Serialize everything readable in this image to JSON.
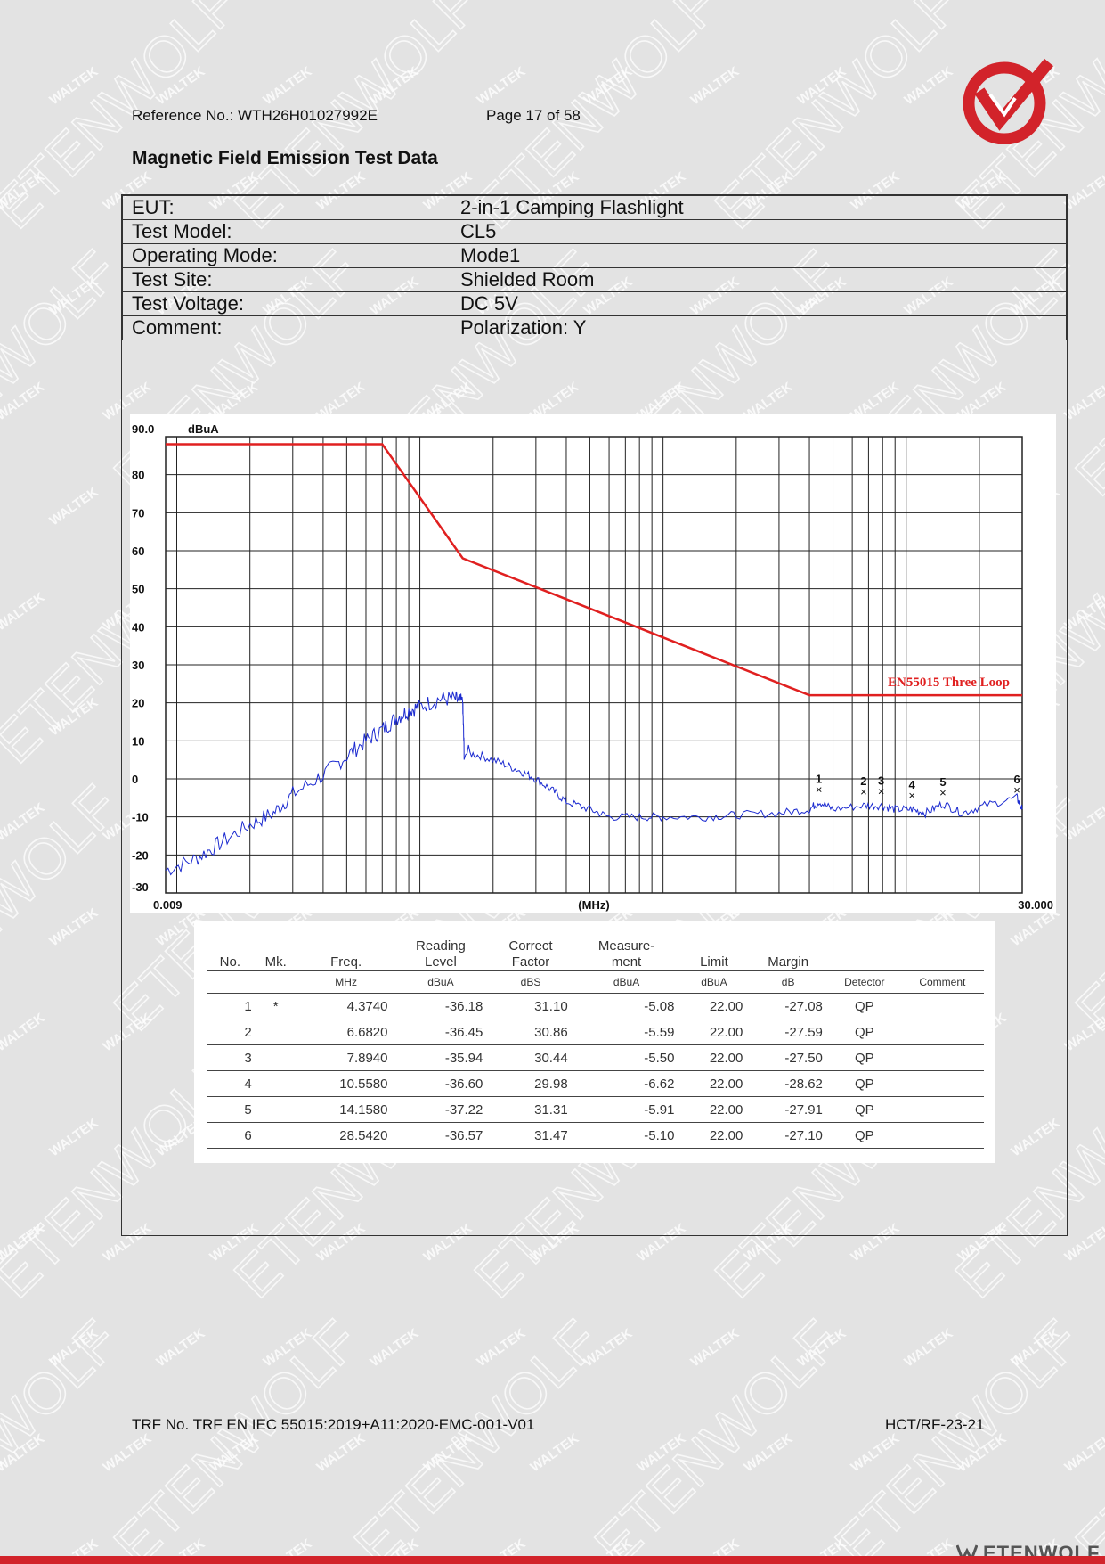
{
  "header": {
    "reference": "Reference No.: WTH26H01027992E",
    "page": "Page 17 of 58"
  },
  "logo_icon": "waltek-check-logo",
  "watermarks": [
    "WALTEK",
    "ETENWOLF"
  ],
  "title": "Magnetic Field Emission Test Data",
  "info": [
    {
      "label": "EUT:",
      "value": "2-in-1 Camping Flashlight"
    },
    {
      "label": "Test Model:",
      "value": "CL5"
    },
    {
      "label": "Operating Mode:",
      "value": "Mode1"
    },
    {
      "label": "Test Site:",
      "value": "Shielded Room"
    },
    {
      "label": "Test Voltage:",
      "value": "DC 5V"
    },
    {
      "label": "Comment:",
      "value": "Polarization: Y"
    }
  ],
  "chart_data": {
    "type": "line",
    "ylabel": "dBuA",
    "xlabel": "(MHz)",
    "xscale": "log",
    "xlim": [
      0.009,
      30.0
    ],
    "ylim": [
      -30,
      90
    ],
    "x_tick_labels": [
      "0.009",
      "30.000"
    ],
    "y_tick_labels": [
      "90.0",
      "80",
      "70",
      "60",
      "50",
      "40",
      "30",
      "20",
      "10",
      "0",
      "-10",
      "-20",
      "-30"
    ],
    "grid": true,
    "colors": {
      "limit": "#e02020",
      "trace": "#1c2bd0"
    },
    "series": [
      {
        "name": "EN55015 Three Loop",
        "x": [
          0.009,
          0.07,
          0.15,
          4.0,
          30.0
        ],
        "y": [
          88,
          88,
          58,
          22,
          22
        ]
      },
      {
        "name": "",
        "x": [
          0.009,
          0.012,
          0.015,
          0.02,
          0.025,
          0.03,
          0.04,
          0.05,
          0.06,
          0.07,
          0.08,
          0.09,
          0.1,
          0.12,
          0.14,
          0.15,
          0.152,
          0.18,
          0.22,
          0.26,
          0.3,
          0.35,
          0.4,
          0.5,
          0.6,
          0.8,
          1.0,
          1.5,
          2.0,
          3.0,
          4.0,
          4.374,
          5.0,
          6.682,
          7.894,
          9.0,
          10.558,
          12.0,
          14.158,
          17.0,
          21.0,
          28.542,
          30.0
        ],
        "y": [
          -24,
          -21,
          -17,
          -12,
          -9,
          -4,
          1,
          6,
          10,
          13,
          16,
          18,
          19,
          21,
          21,
          20,
          7,
          6,
          4,
          2,
          0,
          -3,
          -6,
          -8,
          -10,
          -10,
          -10,
          -10,
          -9.5,
          -9,
          -8,
          -6,
          -8,
          -7,
          -7,
          -8,
          -8,
          -9,
          -6.5,
          -9,
          -7,
          -5,
          -8
        ]
      }
    ],
    "markers": [
      {
        "label": "1",
        "x": 4.374,
        "y": -5.08
      },
      {
        "label": "2",
        "x": 6.682,
        "y": -5.59
      },
      {
        "label": "3",
        "x": 7.894,
        "y": -5.5
      },
      {
        "label": "4",
        "x": 10.558,
        "y": -6.62
      },
      {
        "label": "5",
        "x": 14.158,
        "y": -5.91
      },
      {
        "label": "6",
        "x": 28.542,
        "y": -5.1
      }
    ]
  },
  "result_table": {
    "headers": [
      "No.",
      "Mk.",
      "Freq.",
      "Reading Level",
      "Correct Factor",
      "Measure-ment",
      "Limit",
      "Margin",
      "",
      ""
    ],
    "header_lines": [
      [
        "No."
      ],
      [
        "Mk."
      ],
      [
        "Freq."
      ],
      [
        "Reading",
        "Level"
      ],
      [
        "Correct",
        "Factor"
      ],
      [
        "Measure-",
        "ment"
      ],
      [
        "Limit"
      ],
      [
        "Margin"
      ],
      [
        ""
      ],
      [
        ""
      ]
    ],
    "units": [
      "",
      "",
      "MHz",
      "dBuA",
      "dBS",
      "dBuA",
      "dBuA",
      "dB",
      "Detector",
      "Comment"
    ],
    "rows": [
      [
        "1",
        "*",
        "4.3740",
        "-36.18",
        "31.10",
        "-5.08",
        "22.00",
        "-27.08",
        "QP",
        ""
      ],
      [
        "2",
        "",
        "6.6820",
        "-36.45",
        "30.86",
        "-5.59",
        "22.00",
        "-27.59",
        "QP",
        ""
      ],
      [
        "3",
        "",
        "7.8940",
        "-35.94",
        "30.44",
        "-5.50",
        "22.00",
        "-27.50",
        "QP",
        ""
      ],
      [
        "4",
        "",
        "10.5580",
        "-36.60",
        "29.98",
        "-6.62",
        "22.00",
        "-28.62",
        "QP",
        ""
      ],
      [
        "5",
        "",
        "14.1580",
        "-37.22",
        "31.31",
        "-5.91",
        "22.00",
        "-27.91",
        "QP",
        ""
      ],
      [
        "6",
        "",
        "28.5420",
        "-36.57",
        "31.47",
        "-5.10",
        "22.00",
        "-27.10",
        "QP",
        ""
      ]
    ]
  },
  "footer": {
    "trf": "TRF No. TRF EN IEC 55015:2019+A11:2020-EMC-001-V01",
    "code": "HCT/RF-23-21",
    "brand": "ETENWOLF",
    "brand_icon": "etenwolf-icon"
  }
}
